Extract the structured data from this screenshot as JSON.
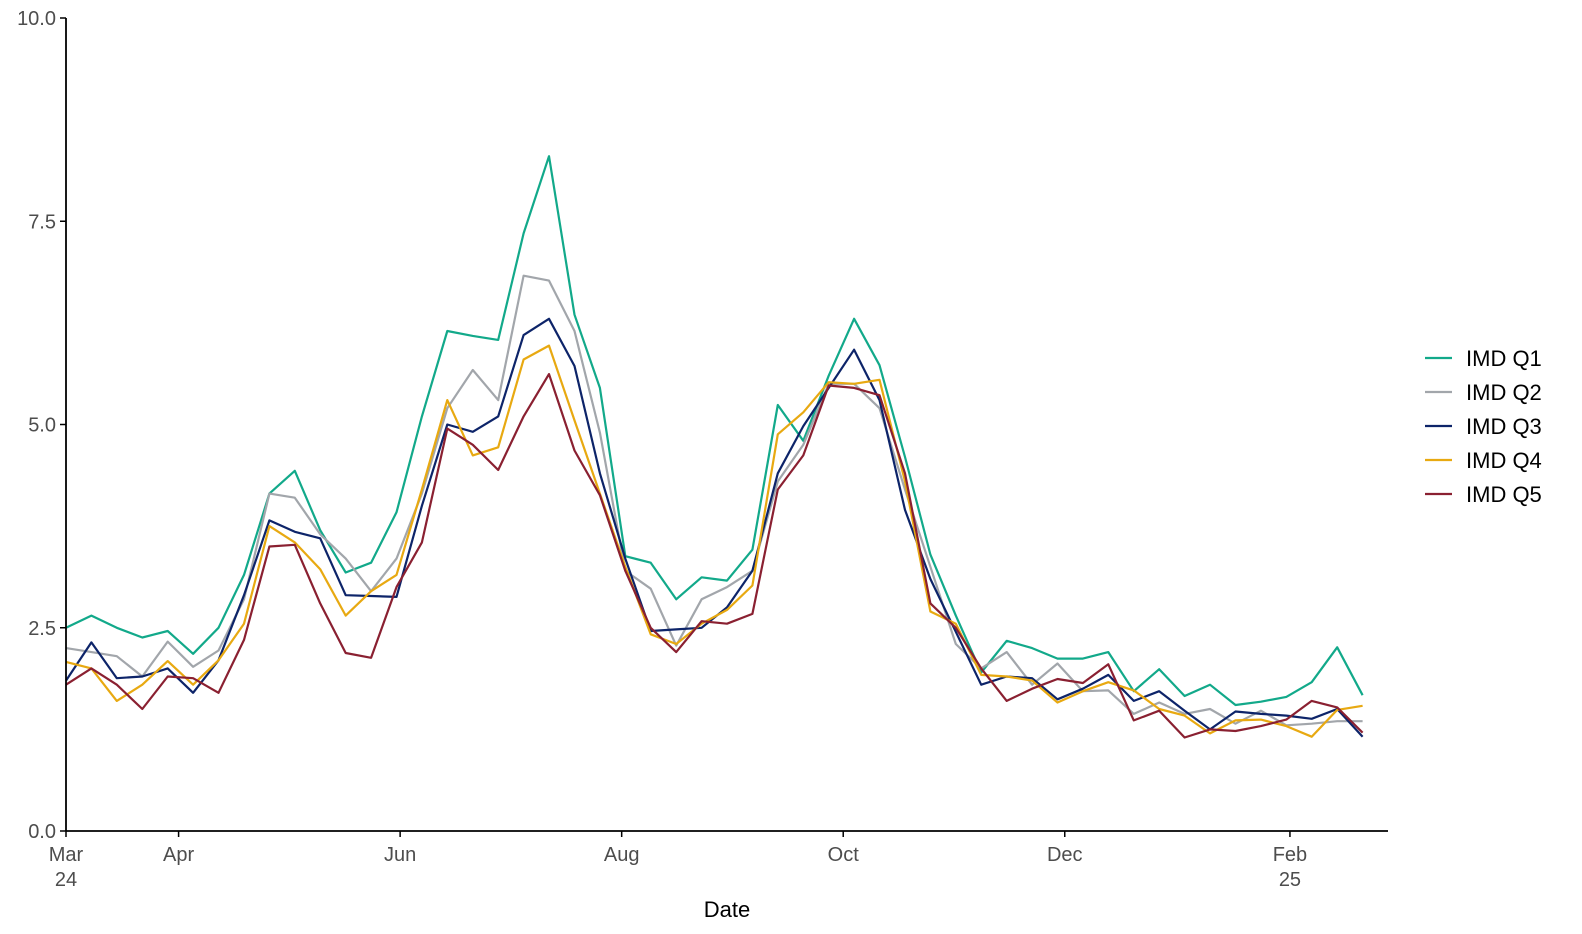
{
  "chart_data": {
    "type": "line",
    "xlabel": "Date",
    "ylabel": "",
    "ylim": [
      0,
      10
    ],
    "xlim": [
      "2024-03-01",
      "2025-02-28"
    ],
    "x_ticks": [
      {
        "date": "2024-03-01",
        "label": "Mar",
        "sublabel": "24"
      },
      {
        "date": "2024-04-01",
        "label": "Apr",
        "sublabel": ""
      },
      {
        "date": "2024-06-01",
        "label": "Jun",
        "sublabel": ""
      },
      {
        "date": "2024-08-01",
        "label": "Aug",
        "sublabel": ""
      },
      {
        "date": "2024-10-01",
        "label": "Oct",
        "sublabel": ""
      },
      {
        "date": "2024-12-01",
        "label": "Dec",
        "sublabel": ""
      },
      {
        "date": "2025-02-01",
        "label": "Feb",
        "sublabel": "25"
      }
    ],
    "y_ticks": [
      {
        "value": 0,
        "label": "0.0"
      },
      {
        "value": 2.5,
        "label": "2.5"
      },
      {
        "value": 5,
        "label": "5.0"
      },
      {
        "value": 7.5,
        "label": "7.5"
      },
      {
        "value": 10,
        "label": "10.0"
      }
    ],
    "grid": false,
    "legend_position": "right",
    "x": [
      "2024-03-01",
      "2024-03-08",
      "2024-03-15",
      "2024-03-22",
      "2024-03-29",
      "2024-04-05",
      "2024-04-12",
      "2024-04-19",
      "2024-04-26",
      "2024-05-03",
      "2024-05-10",
      "2024-05-17",
      "2024-05-24",
      "2024-05-31",
      "2024-06-07",
      "2024-06-14",
      "2024-06-21",
      "2024-06-28",
      "2024-07-05",
      "2024-07-12",
      "2024-07-19",
      "2024-07-26",
      "2024-08-02",
      "2024-08-09",
      "2024-08-16",
      "2024-08-23",
      "2024-08-30",
      "2024-09-06",
      "2024-09-13",
      "2024-09-20",
      "2024-09-27",
      "2024-10-04",
      "2024-10-11",
      "2024-10-18",
      "2024-10-25",
      "2024-11-01",
      "2024-11-08",
      "2024-11-15",
      "2024-11-22",
      "2024-11-29",
      "2024-12-06",
      "2024-12-13",
      "2024-12-20",
      "2024-12-27",
      "2025-01-03",
      "2025-01-10",
      "2025-01-17",
      "2025-01-24",
      "2025-01-31",
      "2025-02-07",
      "2025-02-14",
      "2025-02-21"
    ],
    "series": [
      {
        "name": "IMD Q1",
        "color": "#12a98a",
        "values": [
          2.5,
          2.65,
          2.5,
          2.38,
          2.46,
          2.18,
          2.5,
          3.15,
          4.15,
          4.43,
          3.7,
          3.18,
          3.3,
          3.92,
          5.1,
          6.15,
          6.09,
          6.04,
          7.35,
          8.3,
          6.35,
          5.45,
          3.38,
          3.3,
          2.85,
          3.12,
          3.08,
          3.46,
          5.24,
          4.8,
          5.6,
          6.3,
          5.73,
          4.6,
          3.4,
          2.65,
          1.95,
          2.34,
          2.25,
          2.12,
          2.12,
          2.2,
          1.72,
          1.99,
          1.66,
          1.8,
          1.55,
          1.59,
          1.65,
          1.83,
          2.26,
          1.67
        ]
      },
      {
        "name": "IMD Q2",
        "color": "#a2a6ab",
        "values": [
          2.25,
          2.2,
          2.15,
          1.9,
          2.33,
          2.02,
          2.22,
          2.85,
          4.15,
          4.1,
          3.65,
          3.35,
          2.95,
          3.35,
          4.15,
          5.2,
          5.67,
          5.3,
          6.83,
          6.77,
          6.15,
          4.9,
          3.2,
          2.98,
          2.28,
          2.85,
          3.0,
          3.2,
          4.3,
          4.75,
          5.5,
          5.5,
          5.2,
          4.2,
          3.25,
          2.3,
          2.0,
          2.2,
          1.8,
          2.06,
          1.72,
          1.73,
          1.44,
          1.58,
          1.44,
          1.5,
          1.32,
          1.48,
          1.3,
          1.32,
          1.35,
          1.35
        ]
      },
      {
        "name": "IMD Q3",
        "color": "#0d2469",
        "values": [
          1.85,
          2.32,
          1.88,
          1.9,
          2.0,
          1.7,
          2.1,
          2.9,
          3.82,
          3.68,
          3.6,
          2.9,
          2.89,
          2.88,
          4.0,
          5.0,
          4.91,
          5.1,
          6.1,
          6.3,
          5.72,
          4.4,
          3.35,
          2.46,
          2.48,
          2.5,
          2.75,
          3.2,
          4.4,
          4.98,
          5.45,
          5.92,
          5.3,
          3.95,
          3.1,
          2.45,
          1.8,
          1.9,
          1.88,
          1.62,
          1.75,
          1.92,
          1.6,
          1.72,
          1.48,
          1.25,
          1.47,
          1.44,
          1.42,
          1.38,
          1.5,
          1.16
        ]
      },
      {
        "name": "IMD Q4",
        "color": "#e8a911",
        "values": [
          2.08,
          2.0,
          1.6,
          1.8,
          2.09,
          1.8,
          2.1,
          2.55,
          3.75,
          3.55,
          3.22,
          2.65,
          2.95,
          3.15,
          4.2,
          5.3,
          4.62,
          4.72,
          5.8,
          5.97,
          5.05,
          4.15,
          3.25,
          2.42,
          2.3,
          2.55,
          2.72,
          3.02,
          4.88,
          5.15,
          5.52,
          5.5,
          5.55,
          4.3,
          2.7,
          2.55,
          1.92,
          1.9,
          1.85,
          1.58,
          1.72,
          1.83,
          1.73,
          1.5,
          1.42,
          1.2,
          1.36,
          1.37,
          1.29,
          1.16,
          1.49,
          1.54
        ]
      },
      {
        "name": "IMD Q5",
        "color": "#8a2031",
        "values": [
          1.8,
          2.0,
          1.8,
          1.5,
          1.9,
          1.88,
          1.7,
          2.35,
          3.5,
          3.52,
          2.8,
          2.19,
          2.13,
          3.0,
          3.55,
          4.95,
          4.75,
          4.44,
          5.1,
          5.62,
          4.68,
          4.13,
          3.2,
          2.5,
          2.2,
          2.58,
          2.55,
          2.67,
          4.2,
          4.62,
          5.48,
          5.45,
          5.36,
          4.4,
          2.8,
          2.5,
          2.0,
          1.6,
          1.75,
          1.87,
          1.82,
          2.05,
          1.36,
          1.48,
          1.15,
          1.25,
          1.23,
          1.29,
          1.37,
          1.6,
          1.52,
          1.21
        ]
      }
    ]
  }
}
